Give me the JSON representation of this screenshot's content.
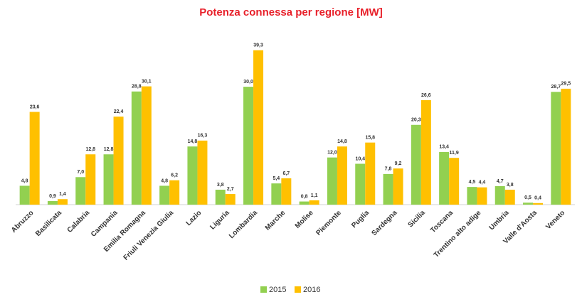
{
  "chart_data": {
    "type": "bar",
    "title": "Potenza connessa per regione [MW]",
    "categories": [
      "Abruzzo",
      "Basilicata",
      "Calabria",
      "Campania",
      "Emilia Romagna",
      "Friuli Venezia Giulia",
      "Lazio",
      "Liguria",
      "Lombardia",
      "Marche",
      "Molise",
      "Piemonte",
      "Puglia",
      "Sardegna",
      "Sicilia",
      "Toscana",
      "Trentino alto adige",
      "Umbria",
      "Valle d'Aosta",
      "Veneto"
    ],
    "series": [
      {
        "name": "2015",
        "color": "#92d050",
        "values": [
          4.8,
          0.9,
          7.0,
          12.8,
          28.8,
          4.8,
          14.8,
          3.8,
          30.0,
          5.4,
          0.8,
          12.0,
          10.4,
          7.8,
          20.3,
          13.4,
          4.5,
          4.7,
          0.5,
          28.7
        ],
        "value_labels": [
          "4,8",
          "0,9",
          "7,0",
          "12,8",
          "28,8",
          "4,8",
          "14,8",
          "3,8",
          "30,0",
          "5,4",
          "0,8",
          "12,0",
          "10,4",
          "7,8",
          "20,3",
          "13,4",
          "4,5",
          "4,7",
          "0,5",
          "28,7"
        ]
      },
      {
        "name": "2016",
        "color": "#ffc000",
        "values": [
          23.6,
          1.4,
          12.8,
          22.4,
          30.1,
          6.2,
          16.3,
          2.7,
          39.3,
          6.7,
          1.1,
          14.8,
          15.8,
          9.2,
          26.6,
          11.9,
          4.4,
          3.8,
          0.4,
          29.5
        ],
        "value_labels": [
          "23,6",
          "1,4",
          "12,8",
          "22,4",
          "30,1",
          "6,2",
          "16,3",
          "2,7",
          "39,3",
          "6,7",
          "1,1",
          "14,8",
          "15,8",
          "9,2",
          "26,6",
          "11,9",
          "4,4",
          "3,8",
          "0,4",
          "29,5"
        ]
      }
    ]
  }
}
